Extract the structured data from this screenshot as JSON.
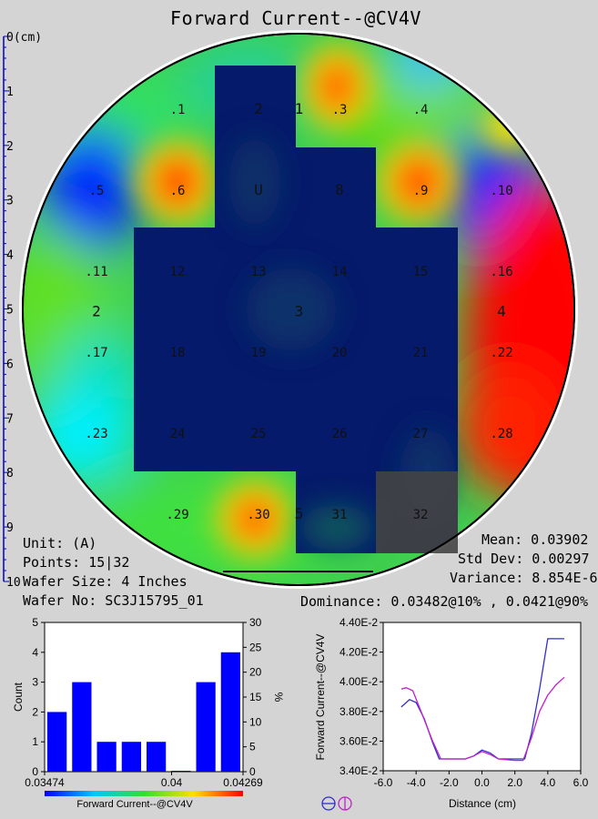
{
  "title": "Forward Current--@CV4V",
  "ruler": {
    "ticks": [
      "0(cm)",
      "1",
      "2",
      "3",
      "4",
      "5",
      "6",
      "7",
      "8",
      "9",
      "10"
    ]
  },
  "wafer": {
    "die_labels": [
      {
        "id": ".1",
        "col": 1,
        "row": 0
      },
      {
        "id": "2",
        "col": 2,
        "row": 0
      },
      {
        "id": "1",
        "col": 2.5,
        "row": 0
      },
      {
        "id": ".3",
        "col": 3,
        "row": 0
      },
      {
        "id": ".4",
        "col": 4,
        "row": 0
      },
      {
        "id": ".5",
        "col": 0,
        "row": 1
      },
      {
        "id": ".6",
        "col": 1,
        "row": 1
      },
      {
        "id": "U",
        "col": 2,
        "row": 1
      },
      {
        "id": "8",
        "col": 3,
        "row": 1
      },
      {
        "id": ".9",
        "col": 4,
        "row": 1
      },
      {
        "id": ".10",
        "col": 5,
        "row": 1
      },
      {
        "id": ".11",
        "col": 0,
        "row": 2
      },
      {
        "id": "12",
        "col": 1,
        "row": 2
      },
      {
        "id": "13",
        "col": 2,
        "row": 2
      },
      {
        "id": "14",
        "col": 3,
        "row": 2
      },
      {
        "id": "15",
        "col": 4,
        "row": 2
      },
      {
        "id": ".16",
        "col": 5,
        "row": 2
      },
      {
        "id": "2",
        "col": 0,
        "row": 2.5
      },
      {
        "id": "3",
        "col": 2.5,
        "row": 2.5
      },
      {
        "id": "4",
        "col": 5,
        "row": 2.5
      },
      {
        "id": ".17",
        "col": 0,
        "row": 3
      },
      {
        "id": "18",
        "col": 1,
        "row": 3
      },
      {
        "id": "19",
        "col": 2,
        "row": 3
      },
      {
        "id": "20",
        "col": 3,
        "row": 3
      },
      {
        "id": "21",
        "col": 4,
        "row": 3
      },
      {
        "id": ".22",
        "col": 5,
        "row": 3
      },
      {
        "id": ".23",
        "col": 0,
        "row": 4
      },
      {
        "id": "24",
        "col": 1,
        "row": 4
      },
      {
        "id": "25",
        "col": 2,
        "row": 4
      },
      {
        "id": "26",
        "col": 3,
        "row": 4
      },
      {
        "id": "27",
        "col": 4,
        "row": 4
      },
      {
        "id": ".28",
        "col": 5,
        "row": 4
      },
      {
        "id": ".29",
        "col": 1,
        "row": 5
      },
      {
        "id": ".30",
        "col": 2,
        "row": 5
      },
      {
        "id": "5",
        "col": 2.5,
        "row": 5
      },
      {
        "id": "31",
        "col": 3,
        "row": 5
      },
      {
        "id": "32",
        "col": 4,
        "row": 5
      }
    ]
  },
  "stats": {
    "unit": "Unit: (A)",
    "points": "Points: 15|32",
    "wafer_size": "Wafer Size: 4 Inches",
    "wafer_no": "Wafer No: SC3J15795_01",
    "mean": "Mean: 0.03902",
    "std_dev": "Std Dev: 0.00297",
    "variance": "Variance: 8.854E-6",
    "dominance": "Dominance: 0.03482@10% , 0.0421@90%"
  },
  "colors": {
    "bar": "#0000ff",
    "line_blue": "#3030c8",
    "line_magenta": "#c020c8",
    "background": "#d4d4d4"
  },
  "chart_data": [
    {
      "type": "bar",
      "ylabel": "Count",
      "y2label": "%",
      "ylim": [
        0,
        5
      ],
      "y2lim": [
        0,
        30
      ],
      "yticks": [
        "0",
        "1",
        "2",
        "3",
        "4",
        "5"
      ],
      "y2ticks": [
        "0",
        "5",
        "10",
        "15",
        "20",
        "25",
        "30"
      ],
      "xticks": [
        "0.03474",
        "0.04",
        "0.04269"
      ],
      "values": [
        2,
        3,
        1,
        1,
        1,
        0,
        3,
        4
      ],
      "colorbar_label": "Forward Current--@CV4V"
    },
    {
      "type": "line",
      "xlabel": "Distance (cm)",
      "ylabel": "Forward Current--@CV4V",
      "xlim": [
        -6,
        6
      ],
      "ylim": [
        0.034,
        0.044
      ],
      "xticks": [
        "-6.0",
        "-4.0",
        "-2.0",
        "0.0",
        "2.0",
        "4.0",
        "6.0"
      ],
      "yticks": [
        "3.40E-2",
        "3.60E-2",
        "3.80E-2",
        "4.00E-2",
        "4.20E-2",
        "4.40E-2"
      ],
      "series": [
        {
          "color": "#3030c8",
          "x": [
            -4.9,
            -4.4,
            -4.0,
            -3.5,
            -3.0,
            -2.6,
            -2.0,
            -1.0,
            -0.5,
            0.0,
            0.5,
            1.0,
            2.0,
            2.6,
            3.0,
            3.5,
            4.0,
            5.0
          ],
          "y": [
            0.0383,
            0.0388,
            0.0386,
            0.0375,
            0.0359,
            0.0348,
            0.0348,
            0.0348,
            0.035,
            0.0354,
            0.0352,
            0.0348,
            0.0348,
            0.0348,
            0.0365,
            0.0395,
            0.0429,
            0.0429
          ]
        },
        {
          "color": "#c020c8",
          "x": [
            -4.9,
            -4.6,
            -4.2,
            -3.7,
            -3.0,
            -2.5,
            -2.0,
            -1.0,
            -0.5,
            0.0,
            0.5,
            1.0,
            2.0,
            2.5,
            3.0,
            3.5,
            4.0,
            4.5,
            5.0
          ],
          "y": [
            0.0395,
            0.0396,
            0.0394,
            0.038,
            0.036,
            0.0348,
            0.0348,
            0.0348,
            0.035,
            0.0353,
            0.0351,
            0.0348,
            0.0347,
            0.0347,
            0.0362,
            0.038,
            0.0391,
            0.0398,
            0.0403
          ]
        }
      ]
    }
  ]
}
